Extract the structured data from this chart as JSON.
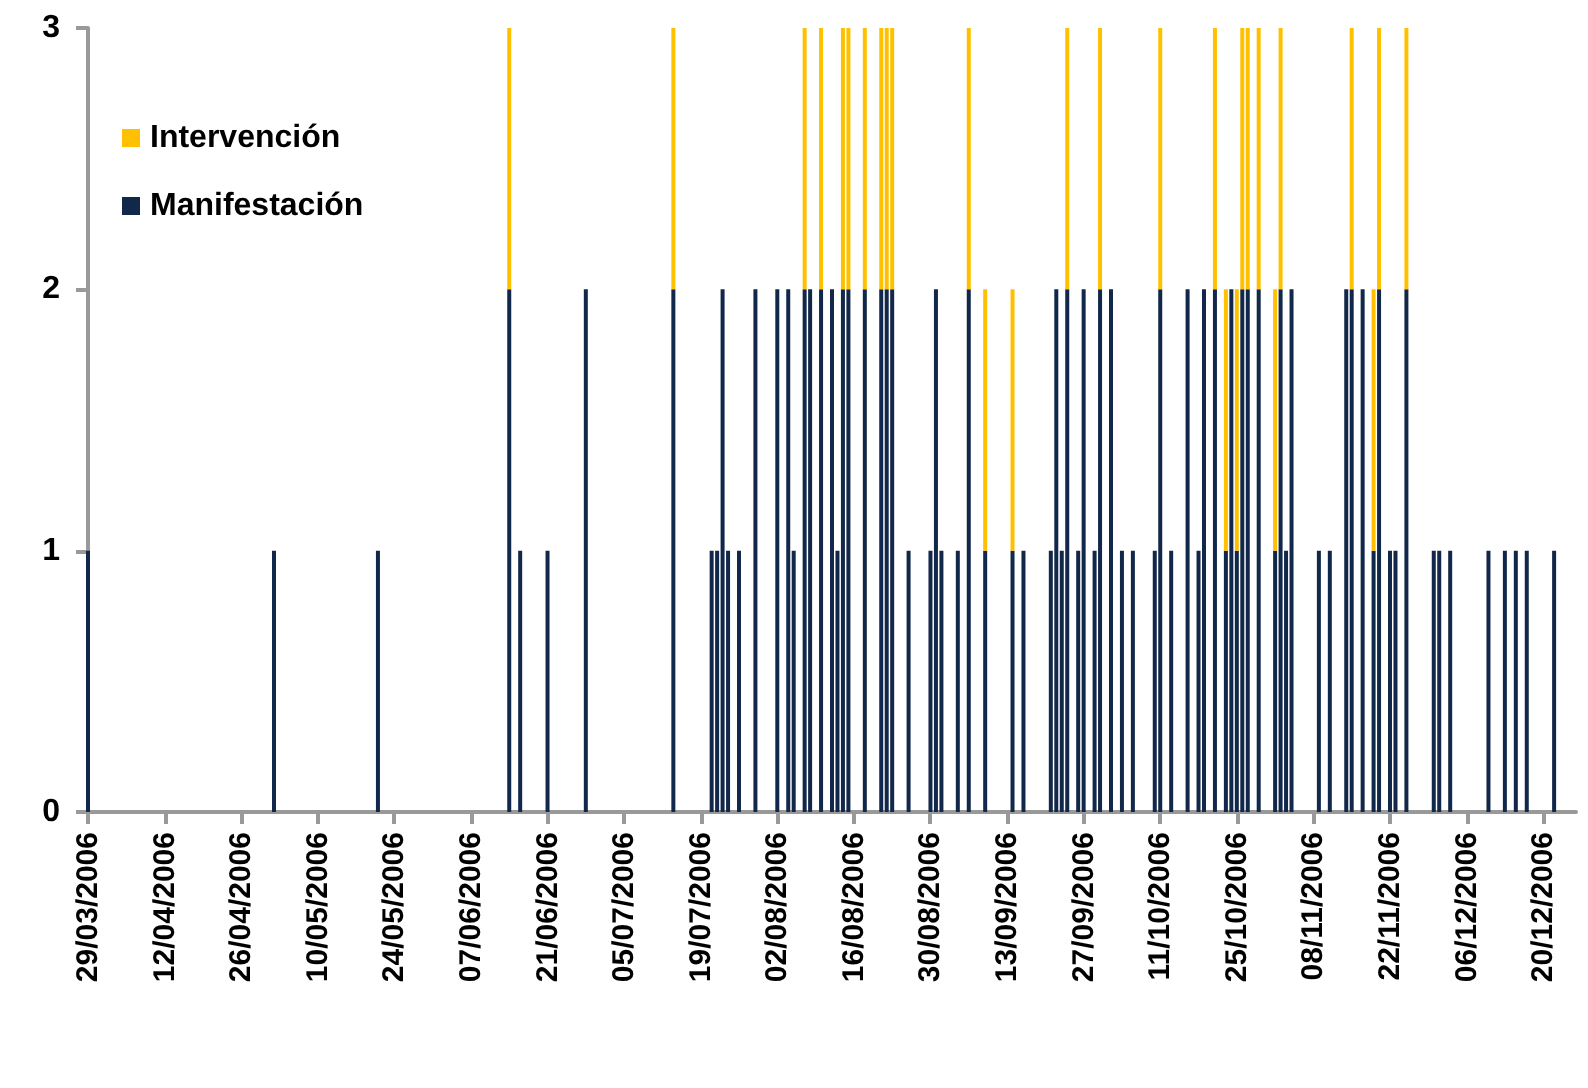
{
  "chart_data": {
    "type": "bar",
    "stacked": true,
    "legend": "top left",
    "grid": false,
    "x": [
      "2006-03-29",
      "2006-05-02",
      "2006-05-21",
      "2006-06-14",
      "2006-06-16",
      "2006-06-21",
      "2006-06-28",
      "2006-07-14",
      "2006-07-21",
      "2006-07-22",
      "2006-07-23",
      "2006-07-24",
      "2006-07-26",
      "2006-07-29",
      "2006-08-02",
      "2006-08-04",
      "2006-08-05",
      "2006-08-07",
      "2006-08-08",
      "2006-08-10",
      "2006-08-12",
      "2006-08-13",
      "2006-08-14",
      "2006-08-15",
      "2006-08-18",
      "2006-08-21",
      "2006-08-22",
      "2006-08-23",
      "2006-08-26",
      "2006-08-30",
      "2006-08-31",
      "2006-09-01",
      "2006-09-04",
      "2006-09-06",
      "2006-09-09",
      "2006-09-14",
      "2006-09-16",
      "2006-09-21",
      "2006-09-22",
      "2006-09-23",
      "2006-09-24",
      "2006-09-26",
      "2006-09-27",
      "2006-09-29",
      "2006-09-30",
      "2006-10-02",
      "2006-10-04",
      "2006-10-06",
      "2006-10-10",
      "2006-10-11",
      "2006-10-13",
      "2006-10-16",
      "2006-10-18",
      "2006-10-19",
      "2006-10-21",
      "2006-10-23",
      "2006-10-24",
      "2006-10-25",
      "2006-10-26",
      "2006-10-27",
      "2006-10-29",
      "2006-11-01",
      "2006-11-02",
      "2006-11-03",
      "2006-11-04",
      "2006-11-09",
      "2006-11-11",
      "2006-11-14",
      "2006-11-15",
      "2006-11-17",
      "2006-11-19",
      "2006-11-20",
      "2006-11-22",
      "2006-11-23",
      "2006-11-25",
      "2006-11-30",
      "2006-12-01",
      "2006-12-03",
      "2006-12-10",
      "2006-12-13",
      "2006-12-15",
      "2006-12-17",
      "2006-12-22"
    ],
    "series": [
      {
        "name": "Manifestación",
        "color": "#12284a",
        "values": [
          1,
          1,
          1,
          2,
          1,
          1,
          2,
          2,
          1,
          1,
          2,
          1,
          1,
          2,
          2,
          2,
          1,
          2,
          2,
          2,
          2,
          1,
          2,
          2,
          2,
          2,
          2,
          2,
          1,
          1,
          2,
          1,
          1,
          2,
          1,
          1,
          1,
          1,
          2,
          1,
          2,
          1,
          2,
          1,
          2,
          2,
          1,
          1,
          1,
          2,
          1,
          2,
          1,
          2,
          2,
          1,
          2,
          1,
          2,
          2,
          2,
          1,
          2,
          1,
          2,
          1,
          1,
          2,
          2,
          2,
          1,
          2,
          1,
          1,
          2,
          1,
          1,
          1,
          1,
          1,
          1,
          1,
          1
        ]
      },
      {
        "name": "Intervención",
        "color": "#ffc000",
        "values": [
          null,
          null,
          null,
          1,
          null,
          null,
          null,
          1,
          null,
          null,
          null,
          null,
          null,
          null,
          null,
          null,
          null,
          1,
          null,
          1,
          null,
          null,
          1,
          1,
          1,
          1,
          1,
          1,
          null,
          null,
          null,
          null,
          null,
          1,
          1,
          1,
          null,
          null,
          null,
          null,
          1,
          null,
          null,
          null,
          1,
          null,
          null,
          null,
          null,
          1,
          null,
          null,
          null,
          null,
          1,
          1,
          null,
          1,
          1,
          1,
          1,
          1,
          1,
          null,
          null,
          null,
          null,
          null,
          1,
          null,
          1,
          1,
          null,
          null,
          1,
          null,
          null,
          null,
          null,
          null,
          null,
          null,
          null
        ]
      }
    ],
    "xlim": [
      "2006-03-29",
      "2006-12-26"
    ],
    "xticks": [
      {
        "value": "2006-03-29",
        "label": "29/03/2006"
      },
      {
        "value": "2006-04-12",
        "label": "12/04/2006"
      },
      {
        "value": "2006-04-26",
        "label": "26/04/2006"
      },
      {
        "value": "2006-05-10",
        "label": "10/05/2006"
      },
      {
        "value": "2006-05-24",
        "label": "24/05/2006"
      },
      {
        "value": "2006-06-07",
        "label": "07/06/2006"
      },
      {
        "value": "2006-06-21",
        "label": "21/06/2006"
      },
      {
        "value": "2006-07-05",
        "label": "05/07/2006"
      },
      {
        "value": "2006-07-19",
        "label": "19/07/2006"
      },
      {
        "value": "2006-08-02",
        "label": "02/08/2006"
      },
      {
        "value": "2006-08-16",
        "label": "16/08/2006"
      },
      {
        "value": "2006-08-30",
        "label": "30/08/2006"
      },
      {
        "value": "2006-09-13",
        "label": "13/09/2006"
      },
      {
        "value": "2006-09-27",
        "label": "27/09/2006"
      },
      {
        "value": "2006-10-11",
        "label": "11/10/2006"
      },
      {
        "value": "2006-10-25",
        "label": "25/10/2006"
      },
      {
        "value": "2006-11-08",
        "label": "08/11/2006"
      },
      {
        "value": "2006-11-22",
        "label": "22/11/2006"
      },
      {
        "value": "2006-12-06",
        "label": "06/12/2006"
      },
      {
        "value": "2006-12-20",
        "label": "20/12/2006"
      }
    ],
    "ylim": [
      0,
      3
    ],
    "yticks": [
      0,
      1,
      2,
      3
    ]
  }
}
